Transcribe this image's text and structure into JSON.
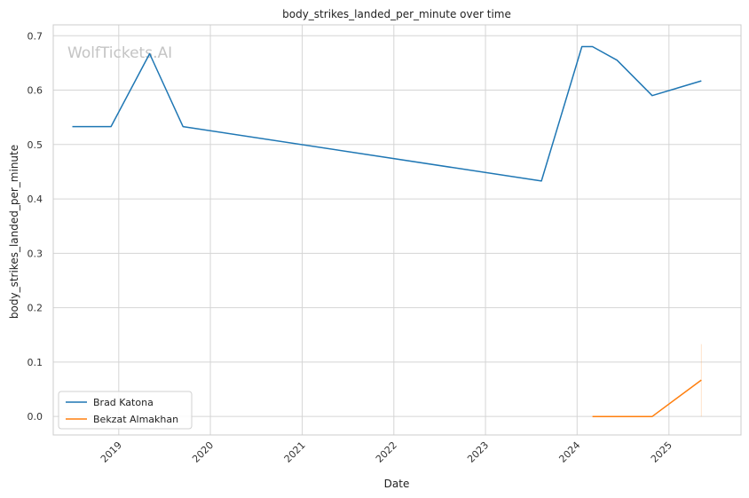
{
  "chart_data": {
    "type": "line",
    "title": "body_strikes_landed_per_minute over time",
    "xlabel": "Date",
    "ylabel": "body_strikes_landed_per_minute",
    "watermark": "WolfTickets.AI",
    "x_type": "date",
    "xlim": [
      "2018-04-15",
      "2025-10-15"
    ],
    "ylim": [
      -0.034,
      0.72
    ],
    "x_ticks": [
      "2019-01-01",
      "2020-01-01",
      "2021-01-01",
      "2022-01-01",
      "2023-01-01",
      "2024-01-01",
      "2025-01-01"
    ],
    "x_tick_labels": [
      "2019",
      "2020",
      "2021",
      "2022",
      "2023",
      "2024",
      "2025"
    ],
    "y_ticks": [
      0.0,
      0.1,
      0.2,
      0.3,
      0.4,
      0.5,
      0.6,
      0.7
    ],
    "y_tick_labels": [
      "0.0",
      "0.1",
      "0.2",
      "0.3",
      "0.4",
      "0.5",
      "0.6",
      "0.7"
    ],
    "grid": true,
    "legend_position": "lower-left",
    "series": [
      {
        "name": "Brad Katona",
        "color": "#1f77b4",
        "x": [
          "2018-06-30",
          "2018-12-01",
          "2019-05-04",
          "2019-09-14",
          "2023-08-12",
          "2024-01-20",
          "2024-03-02",
          "2024-06-08",
          "2024-10-26",
          "2025-05-10"
        ],
        "y": [
          0.533,
          0.533,
          0.667,
          0.533,
          0.433,
          0.68,
          0.68,
          0.655,
          0.59,
          0.617
        ]
      },
      {
        "name": "Bekzat Almakhan",
        "color": "#ff7f0e",
        "x": [
          "2024-03-02",
          "2024-06-08",
          "2024-10-26",
          "2025-05-10"
        ],
        "y": [
          0.0,
          0.0,
          0.0,
          0.067
        ],
        "error_band": {
          "x": "2025-05-10",
          "low": 0.0,
          "high": 0.133
        }
      }
    ]
  }
}
